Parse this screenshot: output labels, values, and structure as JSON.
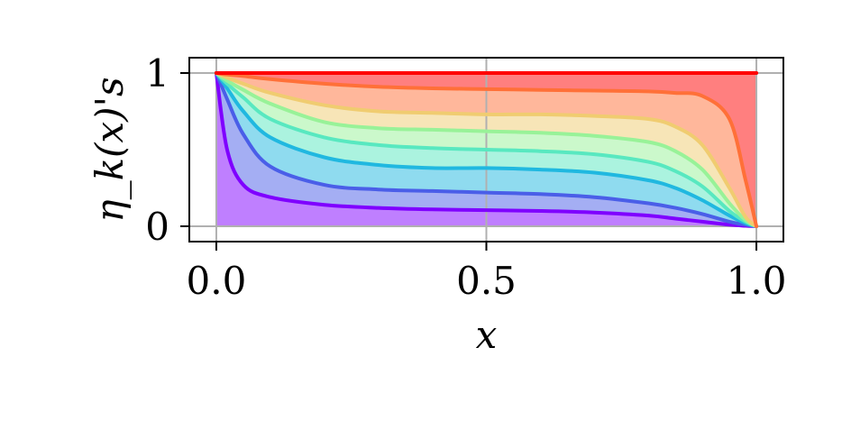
{
  "chart_data": {
    "type": "area",
    "title": "",
    "xlabel": "x",
    "ylabel": "η_k(x)'s",
    "xlim": [
      -0.05,
      1.05
    ],
    "ylim": [
      -0.1,
      1.1
    ],
    "x_ticks": [
      "0.0",
      "0.5",
      "1.0"
    ],
    "x_tick_values": [
      0.0,
      0.5,
      1.0
    ],
    "y_ticks": [
      "0",
      "1"
    ],
    "y_tick_values": [
      0,
      1
    ],
    "grid": true,
    "legend": "none",
    "x": [
      0.0,
      0.02,
      0.05,
      0.1,
      0.2,
      0.3,
      0.4,
      0.5,
      0.6,
      0.7,
      0.8,
      0.85,
      0.9,
      0.95,
      0.98,
      1.0
    ],
    "series": [
      {
        "color": "#7f00ff",
        "values": [
          1.0,
          0.5,
          0.27,
          0.19,
          0.14,
          0.12,
          0.11,
          0.105,
          0.1,
          0.09,
          0.07,
          0.05,
          0.03,
          0.01,
          0.003,
          0.0
        ]
      },
      {
        "color": "#4a5ee8",
        "values": [
          1.0,
          0.83,
          0.6,
          0.39,
          0.27,
          0.24,
          0.23,
          0.22,
          0.21,
          0.19,
          0.15,
          0.12,
          0.08,
          0.03,
          0.01,
          0.0
        ]
      },
      {
        "color": "#20b8e0",
        "values": [
          1.0,
          0.9,
          0.75,
          0.58,
          0.45,
          0.4,
          0.38,
          0.38,
          0.37,
          0.35,
          0.3,
          0.25,
          0.17,
          0.07,
          0.02,
          0.0
        ]
      },
      {
        "color": "#58e8c0",
        "values": [
          1.0,
          0.93,
          0.84,
          0.7,
          0.58,
          0.53,
          0.51,
          0.5,
          0.49,
          0.47,
          0.42,
          0.36,
          0.26,
          0.1,
          0.03,
          0.0
        ]
      },
      {
        "color": "#98f298",
        "values": [
          1.0,
          0.95,
          0.89,
          0.8,
          0.68,
          0.64,
          0.63,
          0.62,
          0.61,
          0.59,
          0.55,
          0.49,
          0.37,
          0.15,
          0.04,
          0.0
        ]
      },
      {
        "color": "#f0cc70",
        "values": [
          1.0,
          0.97,
          0.93,
          0.87,
          0.79,
          0.75,
          0.74,
          0.73,
          0.73,
          0.72,
          0.7,
          0.65,
          0.53,
          0.25,
          0.06,
          0.0
        ]
      },
      {
        "color": "#ff7038",
        "values": [
          1.0,
          0.99,
          0.98,
          0.96,
          0.93,
          0.91,
          0.9,
          0.895,
          0.89,
          0.885,
          0.88,
          0.87,
          0.85,
          0.7,
          0.3,
          0.0
        ]
      },
      {
        "color": "#ff0000",
        "values": [
          1.0,
          1.0,
          1.0,
          1.0,
          1.0,
          1.0,
          1.0,
          1.0,
          1.0,
          1.0,
          1.0,
          1.0,
          1.0,
          1.0,
          1.0,
          1.0
        ]
      }
    ]
  }
}
